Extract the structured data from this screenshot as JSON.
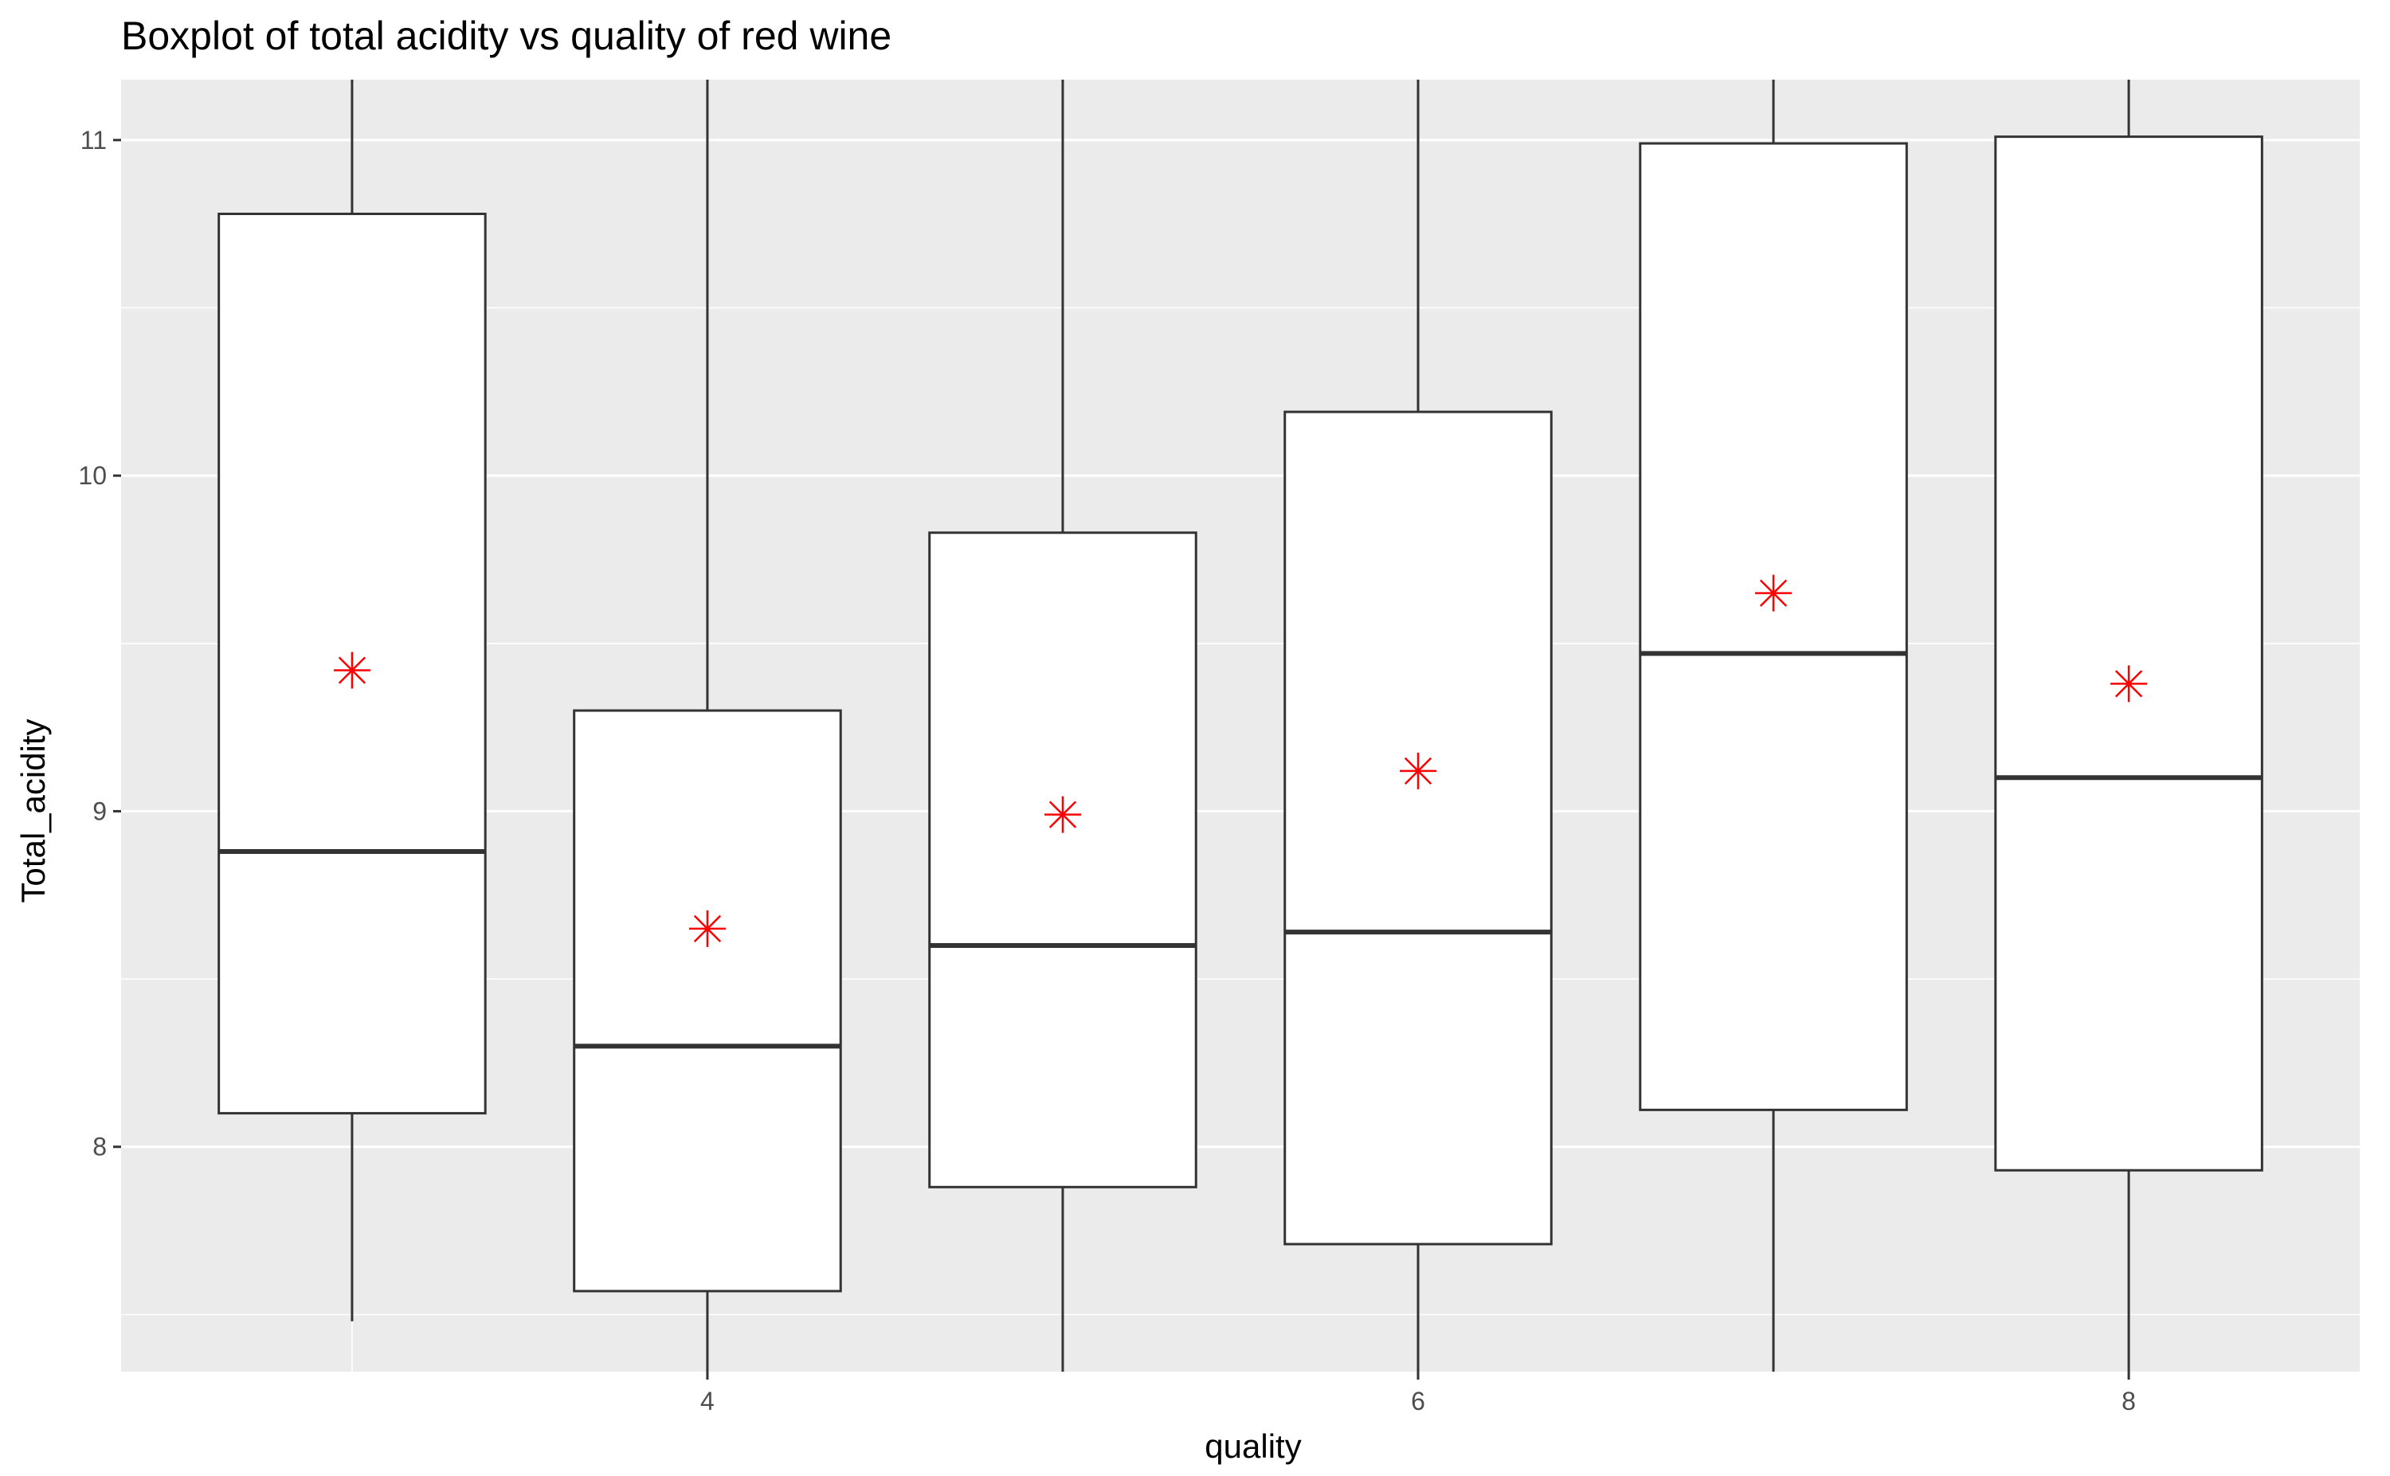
{
  "chart_data": {
    "type": "boxplot",
    "title": "Boxplot of total acidity vs quality of red wine",
    "xlabel": "quality",
    "ylabel": "Total_acidity",
    "x_ticks": [
      4,
      6,
      8
    ],
    "y_ticks": [
      8,
      9,
      10,
      11
    ],
    "xlim": [
      2.35,
      8.65
    ],
    "ylim": [
      7.33,
      11.18
    ],
    "grid": true,
    "legend": "none",
    "categories": [
      3,
      4,
      5,
      6,
      7,
      8
    ],
    "boxes": [
      {
        "x": 3,
        "whisker_low": 7.48,
        "q1": 8.1,
        "median": 8.88,
        "q3": 10.78,
        "whisker_high": 11.18,
        "mean": 9.42
      },
      {
        "x": 4,
        "whisker_low": 7.33,
        "q1": 7.57,
        "median": 8.3,
        "q3": 9.3,
        "whisker_high": 11.18,
        "mean": 8.65
      },
      {
        "x": 5,
        "whisker_low": 7.33,
        "q1": 7.88,
        "median": 8.6,
        "q3": 9.83,
        "whisker_high": 11.18,
        "mean": 8.99
      },
      {
        "x": 6,
        "whisker_low": 7.33,
        "q1": 7.71,
        "median": 8.64,
        "q3": 10.19,
        "whisker_high": 11.18,
        "mean": 9.12
      },
      {
        "x": 7,
        "whisker_low": 7.33,
        "q1": 8.11,
        "median": 9.47,
        "q3": 10.99,
        "whisker_high": 11.18,
        "mean": 9.65
      },
      {
        "x": 8,
        "whisker_low": 7.33,
        "q1": 7.93,
        "median": 9.1,
        "q3": 11.01,
        "whisker_high": 11.18,
        "mean": 9.38
      }
    ],
    "colors": {
      "panel_background": "#ebebeb",
      "grid": "#ffffff",
      "box_fill": "#ffffff",
      "box_line": "#333333",
      "mean_marker": "#ff0000",
      "tick_text": "#4d4d4d"
    },
    "mean_marker_shape": "asterisk"
  }
}
